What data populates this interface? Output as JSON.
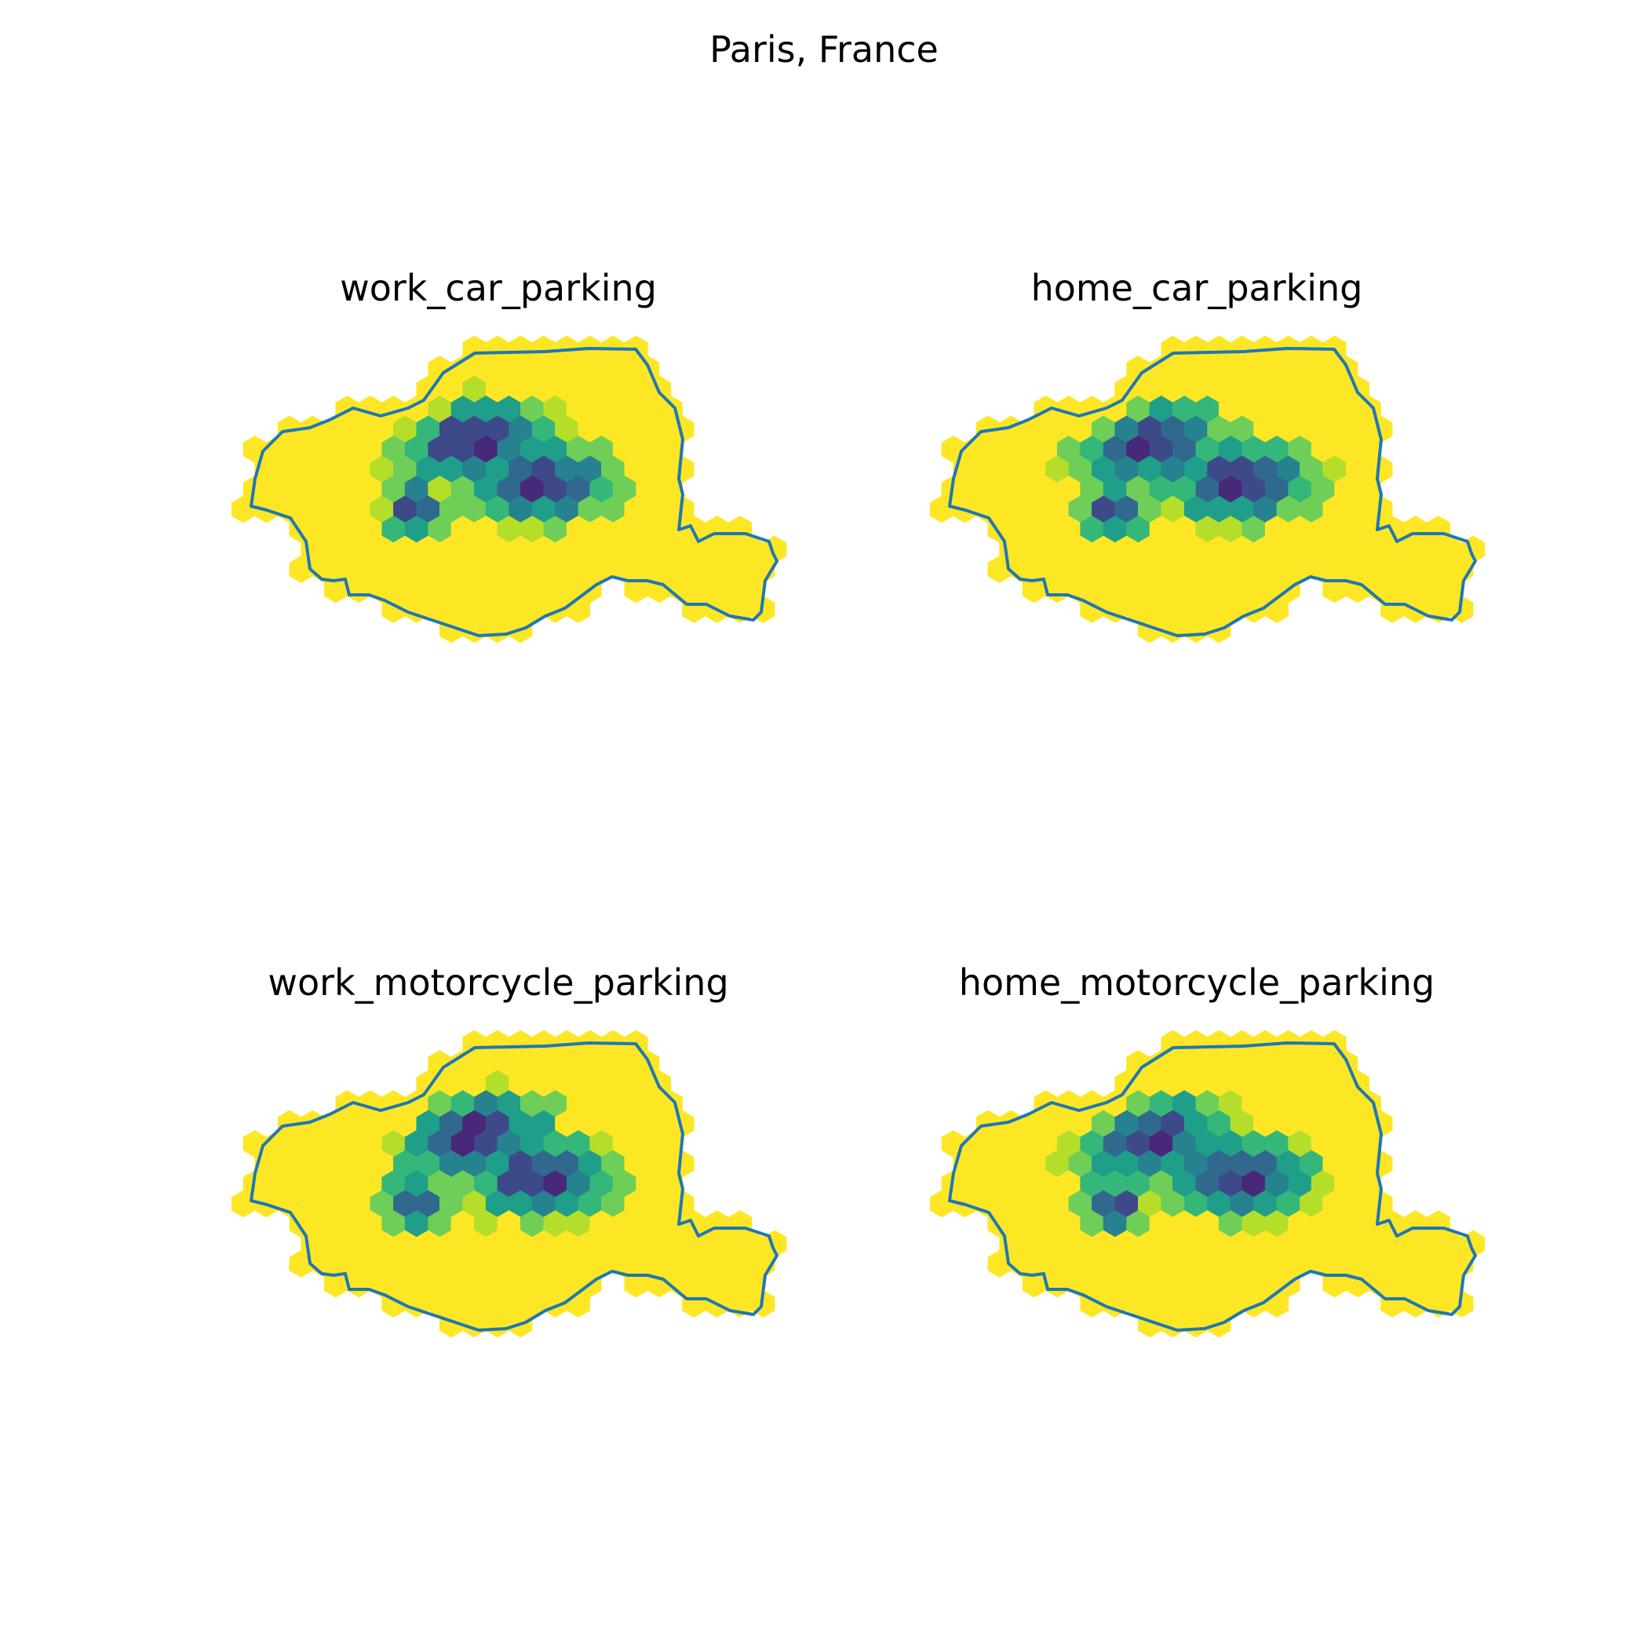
{
  "figure": {
    "suptitle": "Paris, France"
  },
  "panels": [
    {
      "title": "work_car_parking"
    },
    {
      "title": "home_car_parking"
    },
    {
      "title": "work_motorcycle_parking"
    },
    {
      "title": "home_motorcycle_parking"
    }
  ],
  "colors": {
    "colormap": "viridis",
    "boundary": "#1f77b4",
    "viridis_stops": [
      "#440154",
      "#482878",
      "#3e4989",
      "#31688e",
      "#26828e",
      "#1f9e89",
      "#35b779",
      "#6ece58",
      "#b5de2b",
      "#fde725"
    ]
  }
}
